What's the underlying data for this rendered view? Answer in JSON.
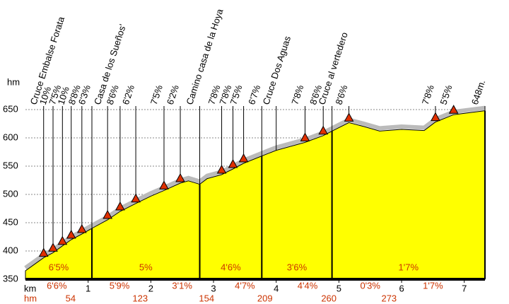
{
  "chart_data": {
    "type": "profile",
    "y_axis_label": "hm",
    "x_axis_label": "km",
    "gain_label": "hm",
    "x": [
      0,
      0.29,
      0.44,
      0.59,
      0.73,
      0.9,
      1.06,
      1.31,
      1.51,
      1.76,
      2,
      2.21,
      2.47,
      2.6,
      2.78,
      2.9,
      3.13,
      3.31,
      3.48,
      3.77,
      4,
      4.46,
      4.75,
      4.89,
      5.16,
      5.4,
      5.65,
      6,
      6.36,
      6.54,
      6.83,
      7.33
    ],
    "values": [
      365,
      388,
      397,
      409,
      420,
      430,
      440,
      455,
      470,
      484,
      497,
      507,
      520,
      524,
      518,
      528,
      535,
      545,
      555,
      568,
      578,
      592,
      604,
      612,
      627,
      620,
      612,
      615,
      613,
      628,
      641,
      648
    ],
    "color": "#ffff00",
    "xlim": [
      0,
      7.33
    ],
    "ylim": [
      350,
      650
    ],
    "xticks": [
      1,
      2,
      3,
      4,
      5,
      6,
      7
    ],
    "yticks": [
      350,
      400,
      450,
      500,
      550,
      600,
      650
    ],
    "grid": true,
    "annotations": [
      {
        "text": "Cruce Embalse Forata",
        "x": 0.29,
        "marker": true
      },
      {
        "text": "10%",
        "x": 0.44,
        "marker": true
      },
      {
        "text": "7'5%",
        "x": 0.59,
        "marker": true
      },
      {
        "text": "10%",
        "x": 0.73,
        "marker": true
      },
      {
        "text": "8'8%",
        "x": 0.9,
        "marker": true
      },
      {
        "text": "6'3%",
        "x": 1.06,
        "marker": false
      },
      {
        "text": "Casa de los Sueños'",
        "x": 1.31,
        "marker": true
      },
      {
        "text": "8'6%",
        "x": 1.51,
        "marker": true
      },
      {
        "text": "6'2%",
        "x": 1.76,
        "marker": true
      },
      {
        "text": "7'5%",
        "x": 2.21,
        "marker": true
      },
      {
        "text": "6'2%",
        "x": 2.47,
        "marker": true
      },
      {
        "text": "Camino casa de la Hoya",
        "x": 2.78,
        "marker": false
      },
      {
        "text": "7'8%",
        "x": 3.13,
        "marker": true
      },
      {
        "text": "7'8%",
        "x": 3.31,
        "marker": true
      },
      {
        "text": "7'5%",
        "x": 3.48,
        "marker": true
      },
      {
        "text": "6'7%",
        "x": 3.77,
        "marker": false
      },
      {
        "text": "Cruce Dos Aguas",
        "x": 4.0,
        "marker": false
      },
      {
        "text": "7'8%",
        "x": 4.46,
        "marker": true
      },
      {
        "text": "8'6%",
        "x": 4.75,
        "marker": true
      },
      {
        "text": "Cruce al vertedero",
        "x": 4.89,
        "marker": false
      },
      {
        "text": "8'6%",
        "x": 5.16,
        "marker": true
      },
      {
        "text": "7'8%",
        "x": 6.54,
        "marker": true
      },
      {
        "text": "5'5%",
        "x": 6.83,
        "marker": true
      },
      {
        "text": "648m.",
        "x": 7.33,
        "marker": false
      }
    ],
    "segments": [
      {
        "label": "6'5%",
        "from": 0,
        "to": 1.06
      },
      {
        "label": "5%",
        "from": 1.06,
        "to": 2.78
      },
      {
        "label": "4'6%",
        "from": 2.78,
        "to": 3.77
      },
      {
        "label": "3'6%",
        "from": 3.77,
        "to": 4.89
      },
      {
        "label": "1'7%",
        "from": 4.89,
        "to": 7.33
      }
    ],
    "km_gradients": [
      "6'6%",
      "5'9%",
      "3'1%",
      "4'7%",
      "4'4%",
      "0'3%",
      "1'7%"
    ],
    "gains": [
      {
        "value": 54,
        "x": 0.72
      },
      {
        "value": 123,
        "x": 1.83
      },
      {
        "value": 154,
        "x": 2.89
      },
      {
        "value": 209,
        "x": 3.82
      },
      {
        "value": 260,
        "x": 4.84
      },
      {
        "value": 273,
        "x": 5.8
      }
    ]
  }
}
